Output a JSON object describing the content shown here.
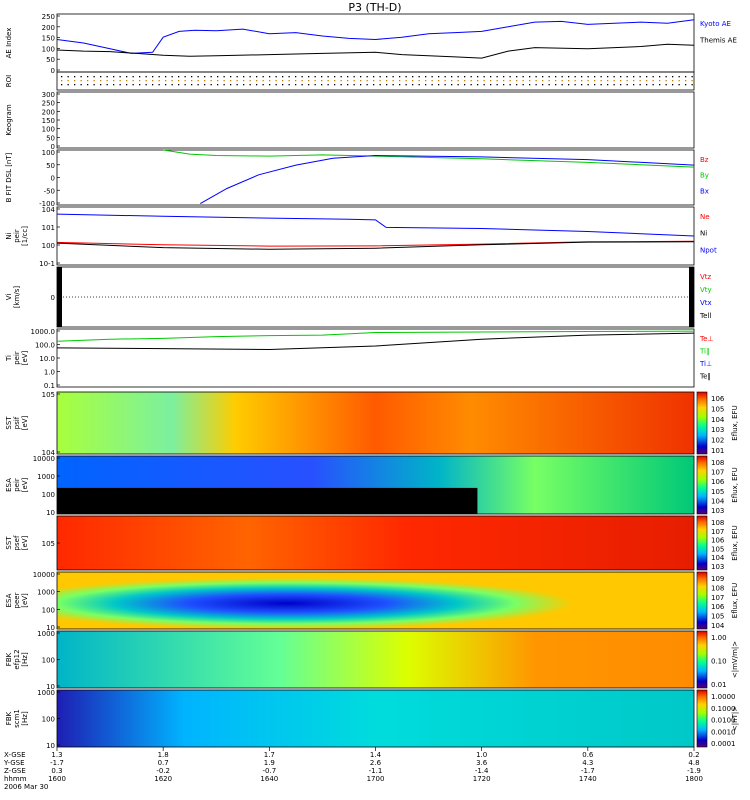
{
  "title": "P3 (TH-D)",
  "chart_data": [
    {
      "type": "line",
      "panel": "ae_index",
      "ylabel": "AE Index",
      "ylim": [
        0,
        250
      ],
      "yticks": [
        "0",
        "50",
        "100",
        "150",
        "200",
        "250"
      ],
      "series": [
        {
          "name": "Kyoto AE",
          "color": "#0000ff",
          "x": [
            1600,
            1605,
            1610,
            1614,
            1618,
            1620,
            1623,
            1626,
            1630,
            1635,
            1640,
            1645,
            1650,
            1655,
            1700,
            1705,
            1710,
            1715,
            1720,
            1725,
            1730,
            1735,
            1740,
            1745,
            1750,
            1755,
            1800
          ],
          "values": [
            140,
            125,
            100,
            80,
            85,
            150,
            175,
            180,
            178,
            185,
            165,
            170,
            155,
            145,
            140,
            150,
            165,
            170,
            175,
            195,
            215,
            218,
            205,
            210,
            215,
            210,
            225
          ]
        },
        {
          "name": "Themis AE",
          "color": "#000000",
          "x": [
            1600,
            1605,
            1610,
            1615,
            1620,
            1625,
            1630,
            1640,
            1650,
            1700,
            1705,
            1710,
            1715,
            1720,
            1725,
            1730,
            1740,
            1750,
            1755,
            1800
          ],
          "values": [
            95,
            90,
            88,
            80,
            72,
            68,
            70,
            75,
            80,
            85,
            75,
            70,
            65,
            60,
            90,
            105,
            100,
            110,
            120,
            115
          ]
        }
      ]
    },
    {
      "type": "scatter",
      "panel": "roi",
      "ylabel": "ROI"
    },
    {
      "type": "line",
      "panel": "keogram",
      "ylabel": "Keogram",
      "ylim": [
        0,
        300
      ],
      "yticks": [
        "0",
        "50",
        "100",
        "150",
        "200",
        "250",
        "300"
      ]
    },
    {
      "type": "line",
      "panel": "b_field",
      "ylabel": "B FIT DSL [nT]",
      "ylim": [
        -100,
        100
      ],
      "yticks": [
        "-100",
        "-50",
        "0",
        "50",
        "100"
      ],
      "series": [
        {
          "name": "Bz",
          "color": "#ff0000"
        },
        {
          "name": "By",
          "color": "#00c800",
          "x": [
            1620,
            1625,
            1630,
            1640,
            1650,
            1700,
            1720,
            1740,
            1800
          ],
          "values": [
            100,
            85,
            80,
            78,
            82,
            78,
            68,
            55,
            38
          ]
        },
        {
          "name": "Bx",
          "color": "#0000ff",
          "x": [
            1627,
            1632,
            1638,
            1645,
            1652,
            1700,
            1720,
            1740,
            1800
          ],
          "values": [
            -95,
            -40,
            10,
            45,
            70,
            80,
            75,
            65,
            45
          ]
        }
      ]
    },
    {
      "type": "line",
      "panel": "density",
      "ylabel": "Ni",
      "ylabel2": "peir",
      "yunit": "[1/cc]",
      "log": true,
      "ylim": [
        0.0001,
        1000000
      ],
      "yticks": [
        "10^-1",
        "10^0",
        "10^1",
        "10^4"
      ],
      "series": [
        {
          "name": "Ne",
          "color": "#ff0000",
          "x": [
            1600,
            1620,
            1640,
            1700,
            1720,
            1740,
            1800
          ],
          "values": [
            0.8,
            0.3,
            0.18,
            0.2,
            0.4,
            1.0,
            1.2
          ]
        },
        {
          "name": "Ni",
          "color": "#000000",
          "x": [
            1600,
            1620,
            1640,
            1700,
            1720,
            1740,
            1800
          ],
          "values": [
            0.6,
            0.1,
            0.05,
            0.08,
            0.3,
            0.9,
            1.0
          ]
        },
        {
          "name": "Npot",
          "color": "#0000ff",
          "x": [
            1600,
            1620,
            1640,
            1655,
            1700,
            1702,
            1720,
            1740,
            1800
          ],
          "values": [
            60000,
            25000,
            12000,
            8000,
            6000,
            300,
            200,
            60,
            10
          ]
        }
      ]
    },
    {
      "type": "line",
      "panel": "velocity",
      "ylabel": "Vi",
      "yunit": "[km/s]",
      "yticks": [
        "",
        "",
        "",
        "0",
        "",
        "",
        ""
      ],
      "series": [
        {
          "name": "Vtz",
          "color": "#ff0000"
        },
        {
          "name": "Vty",
          "color": "#00c800"
        },
        {
          "name": "Vtx",
          "color": "#0000ff"
        },
        {
          "name": "Tell",
          "color": "#000000"
        }
      ]
    },
    {
      "type": "line",
      "panel": "temperature",
      "ylabel": "Ti",
      "ylabel2": "peir",
      "yunit": "[eV]",
      "log": true,
      "ylim": [
        0.1,
        2000
      ],
      "yticks": [
        "0.1",
        "1.0",
        "10.0",
        "100.0",
        "1000.0"
      ],
      "series": [
        {
          "name": "Te⊥",
          "color": "#ff0000"
        },
        {
          "name": "Ti‖",
          "color": "#00c800",
          "x": [
            1600,
            1610,
            1620,
            1630,
            1640,
            1650,
            1700,
            1720,
            1740,
            1800
          ],
          "values": [
            250,
            350,
            400,
            550,
            650,
            700,
            1100,
            1200,
            1300,
            1400
          ]
        },
        {
          "name": "Ti⊥",
          "color": "#0000ff"
        },
        {
          "name": "Te‖",
          "color": "#000000",
          "x": [
            1600,
            1620,
            1640,
            1700,
            1720,
            1740,
            1800
          ],
          "values": [
            80,
            70,
            60,
            110,
            350,
            700,
            1000
          ]
        }
      ]
    },
    {
      "type": "heatmap",
      "panel": "sst_ion",
      "ylabel": "SST",
      "ylabel2": "psif",
      "yunit": "[eV]",
      "log": true,
      "yticks": [
        "10^4",
        "10^5"
      ],
      "colorbar_ticks": [
        "10^6",
        "10^5",
        "10^4",
        "10^3",
        "10^2",
        "10^1"
      ],
      "colorbar_label": "Eflux, EFU"
    },
    {
      "type": "heatmap",
      "panel": "esa_ion",
      "ylabel": "ESA",
      "ylabel2": "peir",
      "yunit": "[eV]",
      "log": true,
      "yticks": [
        "10",
        "100",
        "1000",
        "10000"
      ],
      "colorbar_ticks": [
        "10^8",
        "10^7",
        "10^6",
        "10^5",
        "10^4",
        "10^3"
      ],
      "colorbar_label": "Eflux, EFU"
    },
    {
      "type": "heatmap",
      "panel": "sst_electron",
      "ylabel": "SST",
      "ylabel2": "psef",
      "yunit": "[eV]",
      "log": true,
      "yticks": [
        "10^5"
      ],
      "colorbar_ticks": [
        "10^8",
        "10^7",
        "10^6",
        "10^5",
        "10^4",
        "10^3"
      ],
      "colorbar_label": "Eflux, EFU"
    },
    {
      "type": "heatmap",
      "panel": "esa_electron",
      "ylabel": "ESA",
      "ylabel2": "peer",
      "yunit": "[eV]",
      "log": true,
      "yticks": [
        "10",
        "100",
        "1000",
        "10000"
      ],
      "colorbar_ticks": [
        "10^9",
        "10^8",
        "10^7",
        "10^6",
        "10^5",
        "10^4"
      ],
      "colorbar_label": "Eflux, EFU"
    },
    {
      "type": "heatmap",
      "panel": "fbk_e",
      "ylabel": "FBK",
      "ylabel2": "efp12",
      "yunit": "[Hz]",
      "log": true,
      "yticks": [
        "10",
        "100",
        "1000"
      ],
      "colorbar_ticks": [
        "1.00",
        "0.10",
        "0.01"
      ],
      "colorbar_label": "<|mV/m|>"
    },
    {
      "type": "heatmap",
      "panel": "fbk_b",
      "ylabel": "FBK",
      "ylabel2": "scm1",
      "yunit": "[Hz]",
      "log": true,
      "yticks": [
        "10",
        "100",
        "1000"
      ],
      "colorbar_ticks": [
        "1.0000",
        "0.1000",
        "0.0100",
        "0.0010",
        "0.0001"
      ],
      "colorbar_label": "<|nT|>"
    }
  ],
  "x_axis": {
    "row_labels": [
      "X-GSE",
      "Y-GSE",
      "Z-GSE",
      "hhmm",
      "2006 Mar 30"
    ],
    "ticks": [
      {
        "time": "1600",
        "x": "1.3",
        "y": "-1.7",
        "z": "0.3"
      },
      {
        "time": "1620",
        "x": "1.8",
        "y": "0.7",
        "z": "-0.2"
      },
      {
        "time": "1640",
        "x": "1.7",
        "y": "1.9",
        "z": "-0.7"
      },
      {
        "time": "1700",
        "x": "1.4",
        "y": "2.6",
        "z": "-1.1"
      },
      {
        "time": "1720",
        "x": "1.0",
        "y": "3.6",
        "z": "-1.4"
      },
      {
        "time": "1740",
        "x": "0.6",
        "y": "4.3",
        "z": "-1.7"
      },
      {
        "time": "1800",
        "x": "0.2",
        "y": "4.8",
        "z": "-1.9"
      }
    ]
  }
}
